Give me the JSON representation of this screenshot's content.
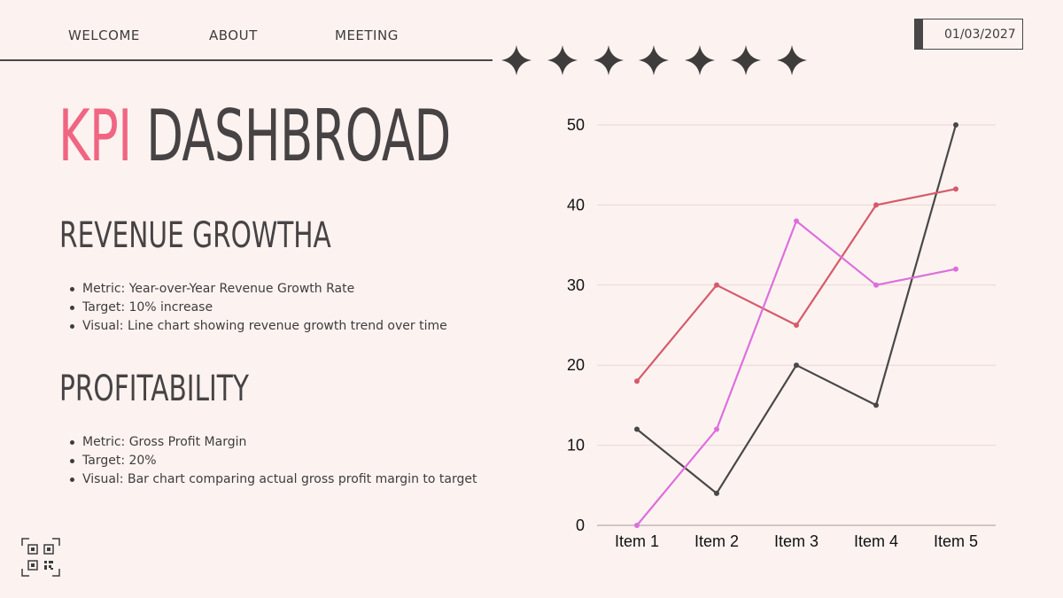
{
  "nav": {
    "items": [
      {
        "label": "WELCOME"
      },
      {
        "label": "ABOUT"
      },
      {
        "label": "MEETING"
      }
    ],
    "date": "01/03/2027"
  },
  "decor": {
    "star_count": 7,
    "star_icon": "four-point-star-icon",
    "qr_icon": "qr-code-icon"
  },
  "title": {
    "accent": "KPI",
    "rest": " DASHBROAD"
  },
  "sections": [
    {
      "heading": "REVENUE GROWTHA",
      "bullets": [
        "Metric: Year-over-Year Revenue Growth Rate",
        "Target: 10% increase",
        "Visual: Line chart showing revenue growth trend over time"
      ]
    },
    {
      "heading": "PROFITABILITY",
      "bullets": [
        "Metric: Gross Profit Margin",
        "Target: 20%",
        "Visual: Bar chart comparing actual gross profit margin to target"
      ]
    }
  ],
  "colors": {
    "background": "#fcf3f1",
    "accent_pink": "#f06682",
    "dark": "#474344",
    "grid": "#e8d6d6"
  },
  "chart_data": {
    "type": "line",
    "categories": [
      "Item 1",
      "Item 2",
      "Item 3",
      "Item 4",
      "Item 5"
    ],
    "ylim": [
      0,
      50
    ],
    "yticks": [
      0,
      10,
      20,
      30,
      40,
      50
    ],
    "grid": true,
    "series": [
      {
        "color": "#4a4748",
        "values": [
          12,
          4,
          20,
          15,
          50
        ]
      },
      {
        "color": "#d65a6a",
        "values": [
          18,
          30,
          25,
          40,
          42
        ]
      },
      {
        "color": "#dd6fdc",
        "values": [
          0,
          12,
          38,
          30,
          32
        ]
      }
    ]
  }
}
